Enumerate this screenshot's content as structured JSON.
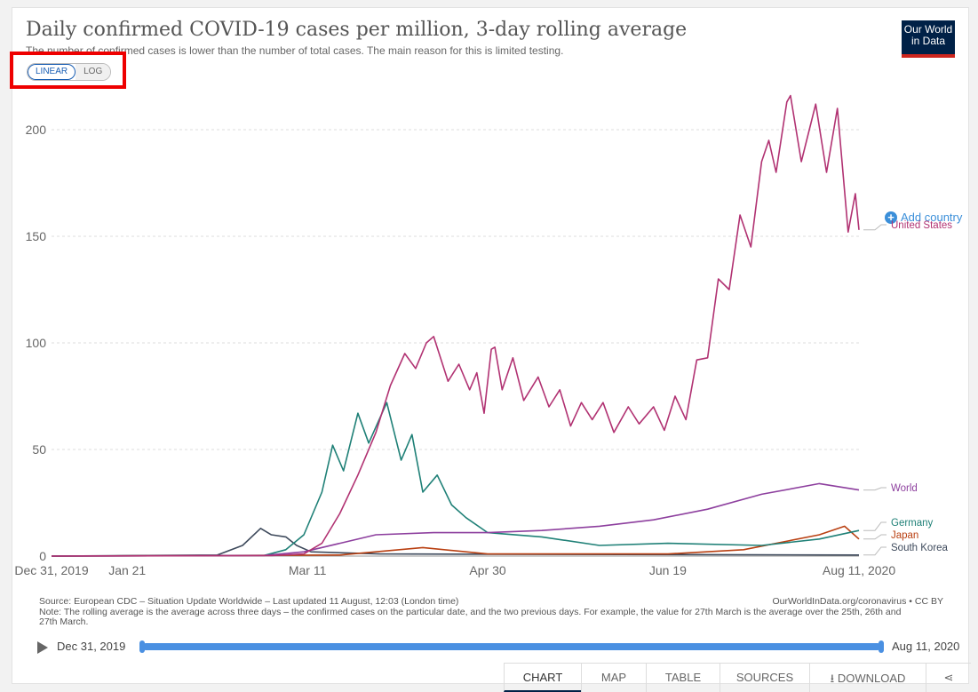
{
  "header": {
    "title": "Daily confirmed COVID-19 cases per million, 3-day rolling average",
    "subtitle": "The number of confirmed cases is lower than the number of total cases. The main reason for this is limited testing.",
    "logo_line1": "Our World",
    "logo_line2": "in Data"
  },
  "scale_toggle": {
    "linear_label": "LINEAR",
    "log_label": "LOG",
    "active": "LINEAR"
  },
  "add_country_label": "Add country",
  "chart_data": {
    "type": "line",
    "title": "Daily confirmed COVID-19 cases per million, 3-day rolling average",
    "xlabel": "",
    "ylabel": "",
    "x_range": [
      "2019-12-31",
      "2020-08-11"
    ],
    "ylim": [
      0,
      220
    ],
    "yticks": [
      0,
      50,
      100,
      150,
      200
    ],
    "xticks": [
      {
        "label": "Dec 31, 2019",
        "date": "2019-12-31"
      },
      {
        "label": "Jan 21",
        "date": "2020-01-21"
      },
      {
        "label": "Mar 11",
        "date": "2020-03-11"
      },
      {
        "label": "Apr 30",
        "date": "2020-04-30"
      },
      {
        "label": "Jun 19",
        "date": "2020-06-19"
      },
      {
        "label": "Aug 11, 2020",
        "date": "2020-08-11"
      }
    ],
    "grid": "horizontal",
    "series": [
      {
        "name": "United States",
        "color": "#b13272",
        "points": [
          [
            "2019-12-31",
            0
          ],
          [
            "2020-03-01",
            0.2
          ],
          [
            "2020-03-10",
            1
          ],
          [
            "2020-03-15",
            6
          ],
          [
            "2020-03-20",
            20
          ],
          [
            "2020-03-25",
            38
          ],
          [
            "2020-03-30",
            58
          ],
          [
            "2020-04-03",
            80
          ],
          [
            "2020-04-07",
            95
          ],
          [
            "2020-04-10",
            88
          ],
          [
            "2020-04-13",
            100
          ],
          [
            "2020-04-15",
            103
          ],
          [
            "2020-04-19",
            82
          ],
          [
            "2020-04-22",
            90
          ],
          [
            "2020-04-25",
            78
          ],
          [
            "2020-04-27",
            86
          ],
          [
            "2020-04-29",
            67
          ],
          [
            "2020-05-01",
            97
          ],
          [
            "2020-05-02",
            98
          ],
          [
            "2020-05-04",
            78
          ],
          [
            "2020-05-07",
            93
          ],
          [
            "2020-05-10",
            73
          ],
          [
            "2020-05-14",
            84
          ],
          [
            "2020-05-17",
            70
          ],
          [
            "2020-05-20",
            78
          ],
          [
            "2020-05-23",
            61
          ],
          [
            "2020-05-26",
            72
          ],
          [
            "2020-05-29",
            64
          ],
          [
            "2020-06-01",
            72
          ],
          [
            "2020-06-04",
            58
          ],
          [
            "2020-06-08",
            70
          ],
          [
            "2020-06-11",
            62
          ],
          [
            "2020-06-15",
            70
          ],
          [
            "2020-06-18",
            59
          ],
          [
            "2020-06-21",
            75
          ],
          [
            "2020-06-24",
            64
          ],
          [
            "2020-06-27",
            92
          ],
          [
            "2020-06-30",
            93
          ],
          [
            "2020-07-03",
            130
          ],
          [
            "2020-07-06",
            125
          ],
          [
            "2020-07-09",
            160
          ],
          [
            "2020-07-12",
            145
          ],
          [
            "2020-07-15",
            185
          ],
          [
            "2020-07-17",
            195
          ],
          [
            "2020-07-19",
            180
          ],
          [
            "2020-07-22",
            213
          ],
          [
            "2020-07-23",
            216
          ],
          [
            "2020-07-26",
            185
          ],
          [
            "2020-07-30",
            212
          ],
          [
            "2020-08-02",
            180
          ],
          [
            "2020-08-05",
            210
          ],
          [
            "2020-08-08",
            152
          ],
          [
            "2020-08-10",
            170
          ],
          [
            "2020-08-11",
            153
          ]
        ]
      },
      {
        "name": "World",
        "color": "#8d3f9e",
        "points": [
          [
            "2019-12-31",
            0
          ],
          [
            "2020-02-28",
            0.3
          ],
          [
            "2020-03-10",
            2
          ],
          [
            "2020-03-20",
            6
          ],
          [
            "2020-03-30",
            10
          ],
          [
            "2020-04-15",
            11
          ],
          [
            "2020-04-30",
            11
          ],
          [
            "2020-05-15",
            12
          ],
          [
            "2020-05-31",
            14
          ],
          [
            "2020-06-15",
            17
          ],
          [
            "2020-06-30",
            22
          ],
          [
            "2020-07-15",
            29
          ],
          [
            "2020-07-31",
            34
          ],
          [
            "2020-08-11",
            31
          ]
        ]
      },
      {
        "name": "Germany",
        "color": "#1f8077",
        "points": [
          [
            "2019-12-31",
            0
          ],
          [
            "2020-02-28",
            0.3
          ],
          [
            "2020-03-05",
            3
          ],
          [
            "2020-03-10",
            10
          ],
          [
            "2020-03-15",
            30
          ],
          [
            "2020-03-18",
            52
          ],
          [
            "2020-03-21",
            40
          ],
          [
            "2020-03-25",
            67
          ],
          [
            "2020-03-28",
            53
          ],
          [
            "2020-04-02",
            72
          ],
          [
            "2020-04-06",
            45
          ],
          [
            "2020-04-09",
            57
          ],
          [
            "2020-04-12",
            30
          ],
          [
            "2020-04-16",
            38
          ],
          [
            "2020-04-20",
            24
          ],
          [
            "2020-04-24",
            18
          ],
          [
            "2020-04-30",
            11
          ],
          [
            "2020-05-15",
            9
          ],
          [
            "2020-05-31",
            5
          ],
          [
            "2020-06-19",
            6
          ],
          [
            "2020-07-15",
            5
          ],
          [
            "2020-07-31",
            8
          ],
          [
            "2020-08-11",
            12
          ]
        ]
      },
      {
        "name": "Japan",
        "color": "#b94012",
        "points": [
          [
            "2019-12-31",
            0
          ],
          [
            "2020-03-20",
            0.5
          ],
          [
            "2020-04-12",
            4
          ],
          [
            "2020-04-30",
            1
          ],
          [
            "2020-06-19",
            1
          ],
          [
            "2020-07-10",
            3
          ],
          [
            "2020-07-31",
            10
          ],
          [
            "2020-08-07",
            14
          ],
          [
            "2020-08-11",
            8
          ]
        ]
      },
      {
        "name": "South Korea",
        "color": "#3e4a5c",
        "points": [
          [
            "2019-12-31",
            0
          ],
          [
            "2020-02-15",
            0.5
          ],
          [
            "2020-02-22",
            5
          ],
          [
            "2020-02-27",
            13
          ],
          [
            "2020-03-01",
            10
          ],
          [
            "2020-03-05",
            9
          ],
          [
            "2020-03-08",
            5
          ],
          [
            "2020-03-12",
            2
          ],
          [
            "2020-03-31",
            1
          ],
          [
            "2020-08-11",
            0.5
          ]
        ]
      }
    ]
  },
  "footer": {
    "source": "Source: European CDC – Situation Update Worldwide – Last updated 11 August, 12:03 (London time)",
    "site": "OurWorldInData.org/coronavirus • CC BY",
    "note": "Note: The rolling average is the average across three days – the confirmed cases on the particular date, and the two previous days. For example, the value for 27th March is the average over the 25th, 26th and 27th March."
  },
  "timeline": {
    "start": "Dec 31, 2019",
    "end": "Aug 11, 2020"
  },
  "tabs": [
    "CHART",
    "MAP",
    "TABLE",
    "SOURCES",
    "DOWNLOAD"
  ],
  "active_tab": "CHART"
}
